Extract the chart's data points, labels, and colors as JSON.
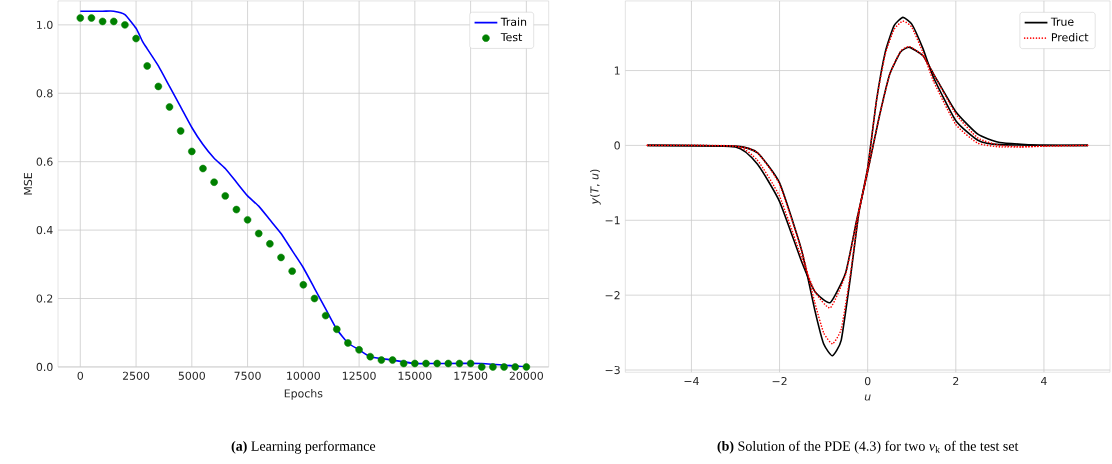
{
  "chart_data": [
    {
      "type": "line",
      "xlabel": "Epochs",
      "ylabel": "MSE",
      "xlim": [
        -1000,
        21000
      ],
      "ylim": [
        0,
        1.07
      ],
      "xticks": [
        0,
        2500,
        5000,
        7500,
        10000,
        12500,
        15000,
        17500,
        20000
      ],
      "yticks": [
        {
          "value": 0,
          "label": "0.0"
        },
        0.2,
        0.4,
        0.6,
        0.8,
        {
          "value": 1,
          "label": "1.0"
        }
      ],
      "grid": true,
      "legend": "top right",
      "annotations": [
        "**(a)** Learning performance"
      ],
      "series": [
        {
          "name": "Train",
          "color": "#0000ff",
          "type": "line",
          "line_style": "solid",
          "marker": "none",
          "x": [
            0,
            1000,
            1500,
            2000,
            2500,
            2800,
            3000,
            3500,
            4000,
            4500,
            5000,
            5500,
            6000,
            6500,
            7000,
            7500,
            8000,
            8500,
            9000,
            9500,
            10000,
            10500,
            11000,
            11500,
            12000,
            12500,
            13000,
            14000,
            15000,
            16000,
            18000,
            20000
          ],
          "values": [
            1.04,
            1.04,
            1.04,
            1.03,
            0.99,
            0.95,
            0.93,
            0.88,
            0.82,
            0.76,
            0.7,
            0.65,
            0.61,
            0.58,
            0.54,
            0.5,
            0.47,
            0.43,
            0.39,
            0.34,
            0.29,
            0.23,
            0.17,
            0.11,
            0.07,
            0.05,
            0.03,
            0.02,
            0.01,
            0.01,
            0.01,
            0.0
          ]
        },
        {
          "name": "Test",
          "color": "#008000",
          "type": "scatter",
          "marker": "circle",
          "x": [
            0,
            500,
            1000,
            1500,
            2000,
            2500,
            3000,
            3500,
            4000,
            4500,
            5000,
            5500,
            6000,
            6500,
            7000,
            7500,
            8000,
            8500,
            9000,
            9500,
            10000,
            10500,
            11000,
            11500,
            12000,
            12500,
            13000,
            13500,
            14000,
            14500,
            15000,
            15500,
            16000,
            16500,
            17000,
            17500,
            18000,
            18500,
            19000,
            19500,
            20000
          ],
          "values": [
            1.02,
            1.02,
            1.01,
            1.01,
            1.0,
            0.96,
            0.88,
            0.82,
            0.76,
            0.69,
            0.63,
            0.58,
            0.54,
            0.5,
            0.46,
            0.43,
            0.39,
            0.36,
            0.32,
            0.28,
            0.24,
            0.2,
            0.15,
            0.11,
            0.07,
            0.05,
            0.03,
            0.02,
            0.02,
            0.01,
            0.01,
            0.01,
            0.01,
            0.01,
            0.01,
            0.01,
            0.0,
            0.0,
            0.0,
            0.0,
            0.0
          ]
        }
      ]
    },
    {
      "type": "line",
      "xlabel": "*u*",
      "ylabel": "*y*(*T*, *u*)",
      "xlim": [
        -5.5,
        5.5
      ],
      "ylim": [
        -3.03,
        1.93
      ],
      "xticks": [
        {
          "value": -4,
          "label": "−4"
        },
        {
          "value": -2,
          "label": "−2"
        },
        0,
        2,
        4
      ],
      "yticks": [
        {
          "value": -3,
          "label": "−3"
        },
        {
          "value": -2,
          "label": "−2"
        },
        {
          "value": -1,
          "label": "−1"
        },
        0,
        1
      ],
      "grid": true,
      "legend": "top right",
      "annotations": [
        "**(b)** Solution of the PDE (4.3) for two *ν*$_{k}$ of the test set"
      ],
      "series": [
        {
          "name": "True",
          "color": "#000000",
          "line_style": "solid",
          "x": [
            -5,
            -3,
            -2.5,
            -2,
            -1.5,
            -1.2,
            -1,
            -0.8,
            -0.6,
            -0.4,
            -0.2,
            0,
            0.2,
            0.4,
            0.6,
            0.8,
            1,
            1.25,
            1.5,
            2,
            2.5,
            3,
            5
          ],
          "values": [
            0,
            -0.01,
            -0.1,
            -0.5,
            -1.4,
            -2.2,
            -2.65,
            -2.81,
            -2.6,
            -1.8,
            -0.9,
            -0.3,
            0.6,
            1.25,
            1.6,
            1.71,
            1.62,
            1.3,
            0.9,
            0.33,
            0.07,
            0.01,
            0
          ]
        },
        {
          "name": "Predict",
          "color": "#ff0000",
          "line_style": "dotted",
          "x": [
            -5,
            -3,
            -2.5,
            -2,
            -1.5,
            -1.2,
            -1,
            -0.8,
            -0.6,
            -0.4,
            -0.2,
            0,
            0.2,
            0.4,
            0.6,
            0.8,
            1,
            1.25,
            1.5,
            2,
            2.5,
            3,
            3.5,
            4,
            5
          ],
          "values": [
            0,
            -0.01,
            -0.1,
            -0.52,
            -1.4,
            -2.1,
            -2.5,
            -2.65,
            -2.45,
            -1.75,
            -0.9,
            -0.3,
            0.6,
            1.22,
            1.55,
            1.66,
            1.58,
            1.25,
            0.85,
            0.28,
            0.03,
            -0.02,
            -0.02,
            -0.01,
            0
          ]
        },
        {
          "color": "#000000",
          "line_style": "solid",
          "x": [
            -5,
            -3,
            -2.5,
            -2,
            -1.5,
            -1.2,
            -0.85,
            -0.5,
            -0.25,
            0,
            0.25,
            0.5,
            0.75,
            0.95,
            1.25,
            1.5,
            2,
            2.5,
            3,
            4,
            5
          ],
          "values": [
            0,
            -0.02,
            -0.25,
            -0.75,
            -1.55,
            -1.95,
            -2.1,
            -1.7,
            -1.0,
            -0.35,
            0.35,
            0.95,
            1.25,
            1.31,
            1.2,
            0.95,
            0.45,
            0.15,
            0.04,
            0,
            0
          ]
        },
        {
          "color": "#ff0000",
          "line_style": "dotted",
          "x": [
            -5,
            -3,
            -2.5,
            -2,
            -1.5,
            -1.2,
            -0.85,
            -0.5,
            -0.25,
            0,
            0.25,
            0.5,
            0.75,
            0.95,
            1.25,
            1.5,
            2,
            2.5,
            3,
            3.5,
            4,
            5
          ],
          "values": [
            0,
            -0.01,
            -0.2,
            -0.68,
            -1.5,
            -1.95,
            -2.17,
            -1.72,
            -1.0,
            -0.35,
            0.35,
            0.95,
            1.26,
            1.32,
            1.2,
            0.95,
            0.42,
            0.1,
            0.0,
            -0.02,
            -0.01,
            0
          ]
        }
      ]
    }
  ]
}
